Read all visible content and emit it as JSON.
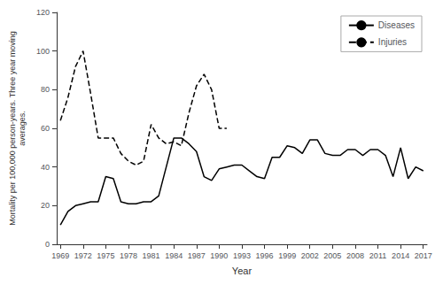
{
  "chart_data": {
    "type": "line",
    "x": [
      1969,
      1970,
      1971,
      1972,
      1973,
      1974,
      1975,
      1976,
      1977,
      1978,
      1979,
      1980,
      1981,
      1982,
      1983,
      1984,
      1985,
      1986,
      1987,
      1988,
      1989,
      1990,
      1991,
      1992,
      1993,
      1994,
      1995,
      1996,
      1997,
      1998,
      1999,
      2000,
      2001,
      2002,
      2003,
      2004,
      2005,
      2006,
      2007,
      2008,
      2009,
      2010,
      2011,
      2012,
      2013,
      2014,
      2015,
      2016,
      2017
    ],
    "series": [
      {
        "name": "Diseases",
        "color": "#000000",
        "line_style": "solid",
        "values": [
          10,
          17,
          20,
          21,
          22,
          22,
          35,
          34,
          22,
          21,
          21,
          22,
          22,
          25,
          40,
          55,
          55,
          52,
          48,
          35,
          33,
          39,
          40,
          41,
          41,
          38,
          35,
          34,
          45,
          45,
          51,
          50,
          47,
          54,
          54,
          47,
          46,
          46,
          49,
          49,
          46,
          49,
          49,
          46,
          35,
          50,
          34,
          40,
          38
        ]
      },
      {
        "name": "Injuries",
        "color": "#000000",
        "line_style": "dashed",
        "values": [
          64,
          76,
          92,
          100,
          78,
          55,
          55,
          55,
          47,
          43,
          41,
          43,
          62,
          55,
          52,
          53,
          51,
          68,
          82,
          88,
          80,
          60,
          60,
          null,
          null,
          null,
          null,
          null,
          null,
          null,
          null,
          null,
          null,
          null,
          null,
          null,
          null,
          null,
          null,
          null,
          null,
          null,
          null,
          null,
          null,
          null,
          null,
          null,
          null
        ]
      }
    ],
    "xlabel": "Year",
    "ylabel": "Mortality per 100,000 person-years. Three year moving\naverages.",
    "xlim": [
      1968.5,
      2017.5
    ],
    "xticks": [
      1969,
      1972,
      1975,
      1978,
      1981,
      1984,
      1987,
      1990,
      1993,
      1996,
      1999,
      2002,
      2005,
      2008,
      2011,
      2014,
      2017
    ],
    "ylim": [
      0,
      120
    ],
    "yticks": [
      0,
      20,
      40,
      60,
      80,
      100,
      120
    ],
    "grid": false,
    "legend": "upper right"
  }
}
